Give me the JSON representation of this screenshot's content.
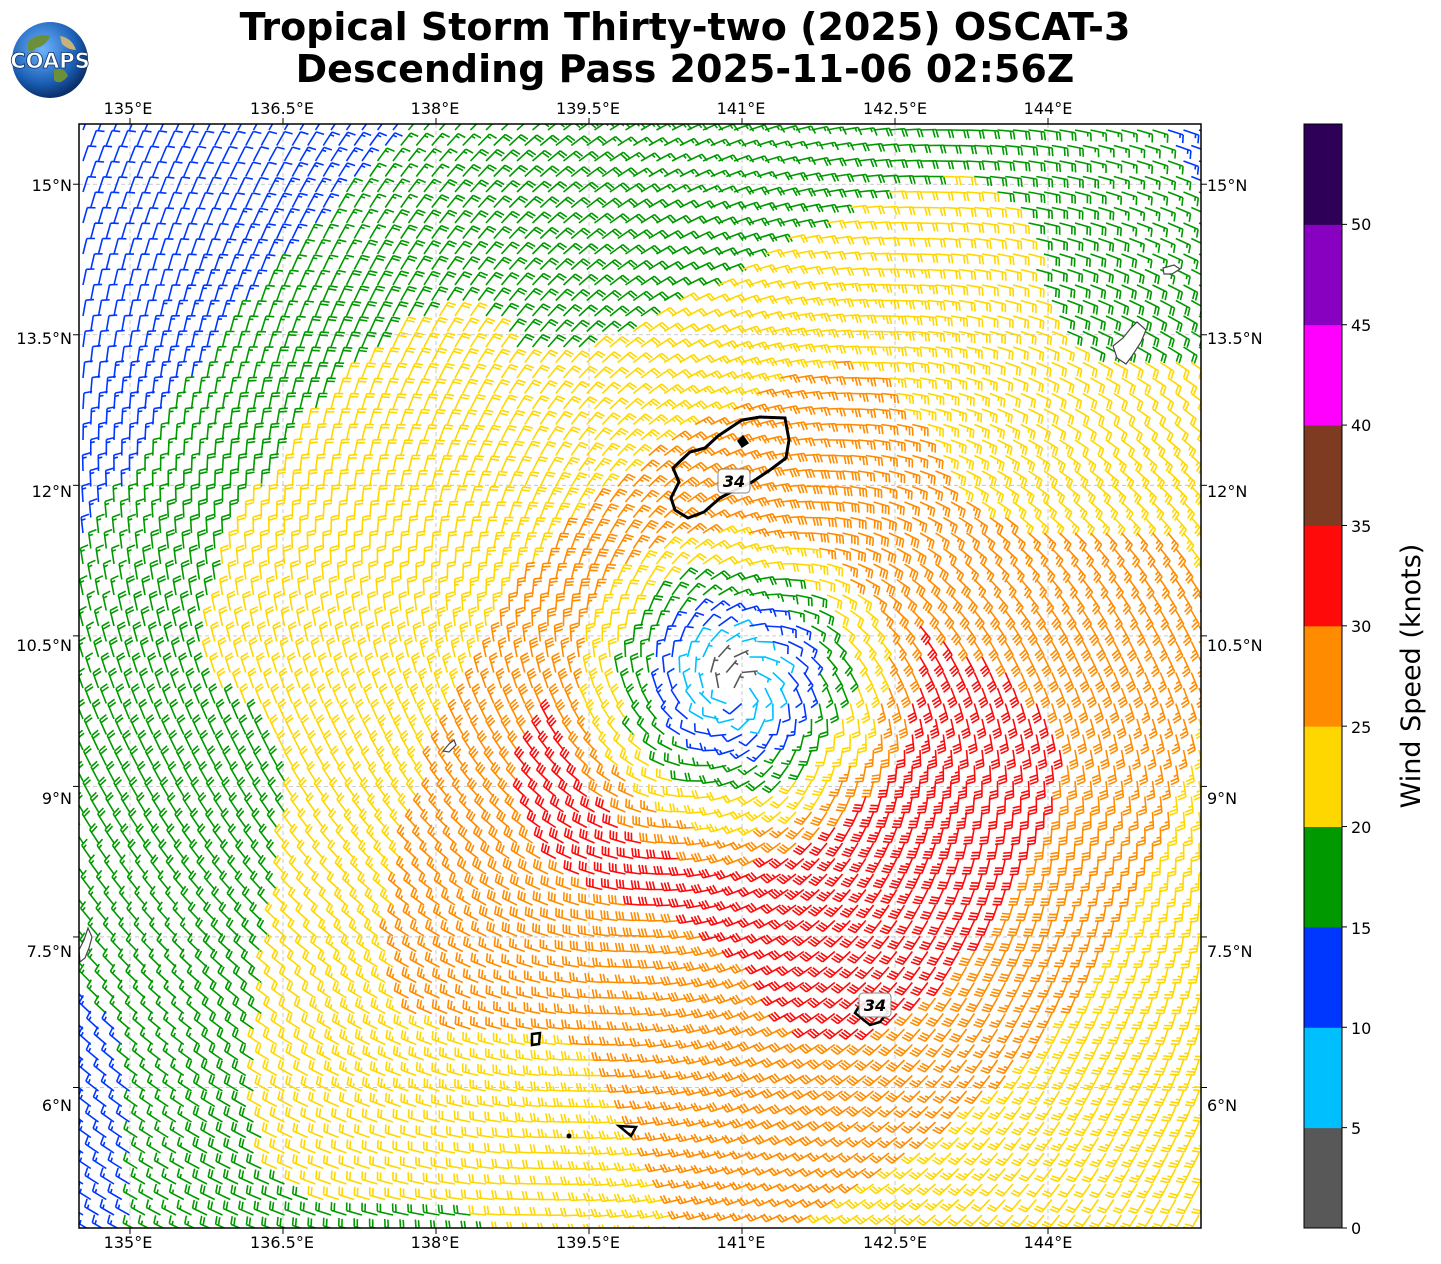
{
  "title": {
    "line1": "Tropical Storm Thirty-two (2025) OSCAT-3",
    "line2": "Descending Pass 2025-11-06 02:56Z"
  },
  "logo": {
    "text": "COAPS",
    "icon": "globe-logo-icon"
  },
  "map": {
    "lon_range": [
      134.5,
      145.5
    ],
    "lat_range": [
      4.6,
      15.6
    ],
    "lon_ticks": [
      "135°E",
      "136.5°E",
      "138°E",
      "139.5°E",
      "141°E",
      "142.5°E",
      "144°E"
    ],
    "lat_ticks": [
      "15°N",
      "13.5°N",
      "12°N",
      "10.5°N",
      "9°N",
      "7.5°N",
      "6°N"
    ],
    "storm_center": {
      "lon": 140.95,
      "lat": 9.95
    },
    "contour_labels": [
      "34",
      "34"
    ]
  },
  "colorbar": {
    "label": "Wind Speed (knots)",
    "ticks": [
      "0",
      "5",
      "10",
      "15",
      "20",
      "25",
      "30",
      "35",
      "40",
      "45",
      "50"
    ],
    "bins": [
      {
        "min": 0,
        "max": 5,
        "color": "#585858"
      },
      {
        "min": 5,
        "max": 10,
        "color": "#00bfff"
      },
      {
        "min": 10,
        "max": 15,
        "color": "#0037ff"
      },
      {
        "min": 15,
        "max": 20,
        "color": "#009900"
      },
      {
        "min": 20,
        "max": 25,
        "color": "#ffd700"
      },
      {
        "min": 25,
        "max": 30,
        "color": "#ff8c00"
      },
      {
        "min": 30,
        "max": 35,
        "color": "#ff0a0a"
      },
      {
        "min": 35,
        "max": 40,
        "color": "#7f3a22"
      },
      {
        "min": 40,
        "max": 45,
        "color": "#ff00ff"
      },
      {
        "min": 45,
        "max": 50,
        "color": "#8800c0"
      },
      {
        "min": 50,
        "max": 55,
        "color": "#2e0058"
      }
    ]
  }
}
